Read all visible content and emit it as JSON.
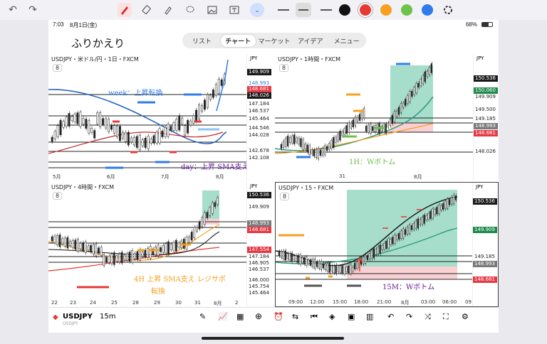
{
  "toolbar": {
    "undo": "↶",
    "redo": "↷",
    "tools": [
      "pen-tool",
      "eraser-tool",
      "highlighter-tool",
      "lasso-tool",
      "image-tool",
      "text-tool",
      "more-tool"
    ],
    "colors": [
      "#1a1a1a",
      "#e53935",
      "#f5a020",
      "#6cc24a",
      "#2f7bea"
    ]
  },
  "status": {
    "time": "7:03",
    "date": "8月1日(金)",
    "wifi": "68%"
  },
  "title_handwritten": "ふりかえり",
  "tabs": [
    "リスト",
    "チャート",
    "マーケット",
    "アイデア",
    "メニュー"
  ],
  "active_tab": "チャート",
  "panels": {
    "daily": {
      "title": "USDJPY・米ドル/円・1日・FXCM",
      "interval": "8",
      "currency": "JPY",
      "prices": [
        "149.909",
        "148.993",
        "148.681",
        "148.026",
        "147.184",
        "146.537",
        "145.464",
        "144.546",
        "144.028",
        "142.678",
        "142.108"
      ],
      "months": [
        "5月",
        "6月",
        "7月",
        "8月"
      ],
      "note_week": "week：上昇転換",
      "note_day": "day：上昇 SMA支え"
    },
    "h1": {
      "title": "USDJPY・1時間・FXCM",
      "interval": "8",
      "currency": "JPY",
      "prices": [
        "150.536",
        "150.060",
        "149.909",
        "149.500",
        "149.185",
        "148.993",
        "148.681",
        "148.026"
      ],
      "xlabels": [
        "31",
        "8月"
      ],
      "note": "1H：Wボトム"
    },
    "h4": {
      "title": "USDJPY・4時間・FXCM",
      "interval": "8",
      "currency": "JPY",
      "prices": [
        "150.536",
        "149.909",
        "148.993",
        "148.681",
        "147.554",
        "147.184",
        "146.905",
        "146.537",
        "146.000",
        "145.754",
        "145.464"
      ],
      "xlabels": [
        "22",
        "23",
        "24",
        "25",
        "28",
        "29",
        "30",
        "31",
        "8月",
        "2"
      ],
      "note1": "4H 上昇 SMA支え レジサポ",
      "note2": "転換"
    },
    "m15": {
      "title": "USDJPY・15・FXCM",
      "interval": "8",
      "currency": "JPY",
      "prices": [
        "150.536",
        "149.909",
        "149.185",
        "148.993",
        "148.681"
      ],
      "xlabels": [
        "09:00",
        "12:00",
        "15:00",
        "18:00",
        "21:00",
        "8月",
        "03:00",
        "06:00",
        "09"
      ],
      "note": "15M：Wボトム"
    }
  },
  "bottom": {
    "symbol": "USDJPY",
    "interval": "15m",
    "subtitle": "USDJPY"
  }
}
